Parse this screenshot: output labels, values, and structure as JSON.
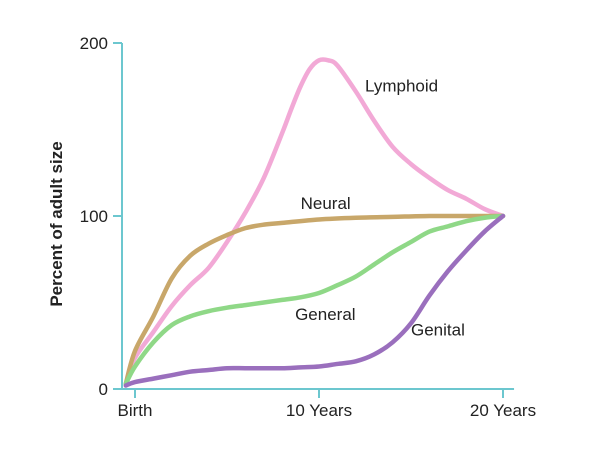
{
  "chart_data": {
    "type": "line",
    "title": "",
    "xlabel": "",
    "ylabel": "Percent of adult size",
    "x_tick_labels": [
      {
        "x": 0,
        "label": "Birth"
      },
      {
        "x": 10,
        "label": "10 Years"
      },
      {
        "x": 20,
        "label": "20 Years"
      }
    ],
    "y_ticks": [
      0,
      100,
      200
    ],
    "xlim": [
      -0.6,
      20.6
    ],
    "ylim": [
      0,
      200
    ],
    "grid": false,
    "legend": "none",
    "axis_color": "#6cc7cf",
    "series": [
      {
        "name": "Lymphoid",
        "color": "#f2a9d6",
        "x": [
          -0.5,
          0,
          1,
          2,
          3,
          4,
          5,
          6,
          7,
          8,
          8.5,
          9,
          9.5,
          10,
          10.5,
          11,
          12,
          13,
          14,
          15,
          16,
          17,
          18,
          19,
          20
        ],
        "y": [
          3,
          18,
          33,
          48,
          60,
          70,
          85,
          102,
          122,
          148,
          162,
          175,
          185,
          190,
          190,
          187,
          172,
          155,
          140,
          130,
          122,
          115,
          110,
          104,
          100
        ]
      },
      {
        "name": "Neural",
        "color": "#c8a76a",
        "x": [
          -0.5,
          0,
          1,
          2,
          3,
          4,
          5,
          6,
          7,
          8,
          10,
          12,
          14,
          16,
          18,
          20
        ],
        "y": [
          3,
          22,
          42,
          64,
          77,
          84,
          89,
          93,
          95,
          96,
          98,
          99,
          99.5,
          100,
          100,
          100
        ]
      },
      {
        "name": "General",
        "color": "#8fd887",
        "x": [
          -0.5,
          0,
          1,
          2,
          3,
          4,
          5,
          6,
          7,
          8,
          9,
          10,
          11,
          12,
          13,
          14,
          15,
          16,
          17,
          18,
          19,
          20
        ],
        "y": [
          3,
          13,
          27,
          37,
          42,
          45,
          47,
          48.5,
          50,
          51.5,
          53,
          55.5,
          60,
          65,
          72,
          79,
          85,
          91,
          94,
          97,
          99,
          100
        ]
      },
      {
        "name": "Genital",
        "color": "#9a6fbd",
        "x": [
          -0.5,
          0,
          1,
          2,
          3,
          4,
          5,
          6,
          7,
          8,
          9,
          10,
          11,
          12,
          13,
          14,
          15,
          16,
          17,
          18,
          19,
          20
        ],
        "y": [
          2,
          4,
          6,
          8,
          10,
          11,
          12,
          12,
          12,
          12,
          12.5,
          13,
          14.5,
          16,
          20,
          27,
          38,
          54,
          68,
          80,
          91,
          100
        ]
      }
    ],
    "annotations": [
      {
        "series": "Lymphoid",
        "text": "Lymphoid",
        "x": 12.5,
        "y": 172
      },
      {
        "series": "Neural",
        "text": "Neural",
        "x": 9,
        "y": 104
      },
      {
        "series": "General",
        "text": "General",
        "x": 8.7,
        "y": 40
      },
      {
        "series": "Genital",
        "text": "Genital",
        "x": 15,
        "y": 31
      }
    ]
  }
}
